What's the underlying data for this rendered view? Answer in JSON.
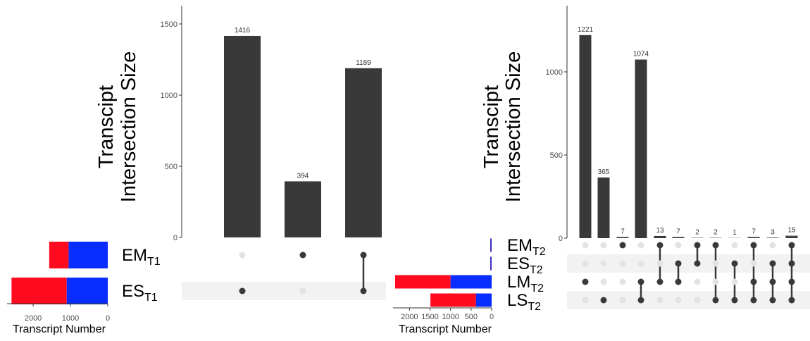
{
  "colors": {
    "bar": "#393939",
    "dot_on": "#393939",
    "dot_off": "#e3e3e3",
    "stripe": "#f2f2f2",
    "set_bar_primary": "#ff0a1e",
    "set_bar_secondary": "#0a2dff",
    "set_bar_accent": "#3a2fbf",
    "axis": "#333333"
  },
  "chart_data": [
    {
      "type": "bar",
      "ylabel": [
        "Transcipt",
        "Intersection Size"
      ],
      "ylim": [
        0,
        1600
      ],
      "yticks": [
        0,
        500,
        1000,
        1500
      ],
      "values": [
        1416,
        394,
        1189
      ],
      "value_labels": [
        "1416",
        "394",
        "1189"
      ],
      "sets": [
        {
          "main": "EM",
          "sub": "T1"
        },
        {
          "main": "ES",
          "sub": "T1"
        }
      ],
      "membership": [
        [
          1
        ],
        [
          0
        ],
        [
          0,
          1
        ]
      ],
      "set_size": {
        "xlabel": "Transcript Number",
        "xlim": [
          2700,
          0
        ],
        "xticks": [
          2000,
          1000,
          0
        ],
        "bars": [
          {
            "segments": [
              1050,
              1570
            ]
          },
          {
            "segments": [
              1100,
              2580
            ]
          }
        ]
      }
    },
    {
      "type": "bar",
      "ylabel": [
        "Transcipt",
        "Intersection Size"
      ],
      "ylim": [
        0,
        1280
      ],
      "yticks": [
        0,
        500,
        1000
      ],
      "values": [
        1221,
        365,
        7,
        1074,
        13,
        7,
        2,
        2,
        1,
        7,
        3,
        15
      ],
      "value_labels": [
        "1221",
        "365",
        "7",
        "1074",
        "13",
        "7",
        "2",
        "2",
        "1",
        "7",
        "3",
        "15"
      ],
      "sets": [
        {
          "main": "EM",
          "sub": "T2"
        },
        {
          "main": "ES",
          "sub": "T2"
        },
        {
          "main": "LM",
          "sub": "T2"
        },
        {
          "main": "LS",
          "sub": "T2"
        }
      ],
      "membership": [
        [
          2
        ],
        [
          3
        ],
        [
          0
        ],
        [
          2,
          3
        ],
        [
          0,
          2
        ],
        [
          1,
          2
        ],
        [
          0,
          1
        ],
        [
          0,
          3
        ],
        [
          1,
          3
        ],
        [
          0,
          2,
          3
        ],
        [
          1,
          2,
          3
        ],
        [
          0,
          1,
          2,
          3
        ]
      ],
      "set_size": {
        "xlabel": "Transcript Number",
        "xlim": [
          2400,
          0
        ],
        "xticks": [
          2000,
          1500,
          1000,
          500,
          0
        ],
        "bars": [
          {
            "segments": [
              14
            ]
          },
          {
            "segments": [
              8
            ]
          },
          {
            "segments": [
              1000,
              2350
            ]
          },
          {
            "segments": [
              380,
              1490
            ]
          }
        ]
      }
    }
  ]
}
